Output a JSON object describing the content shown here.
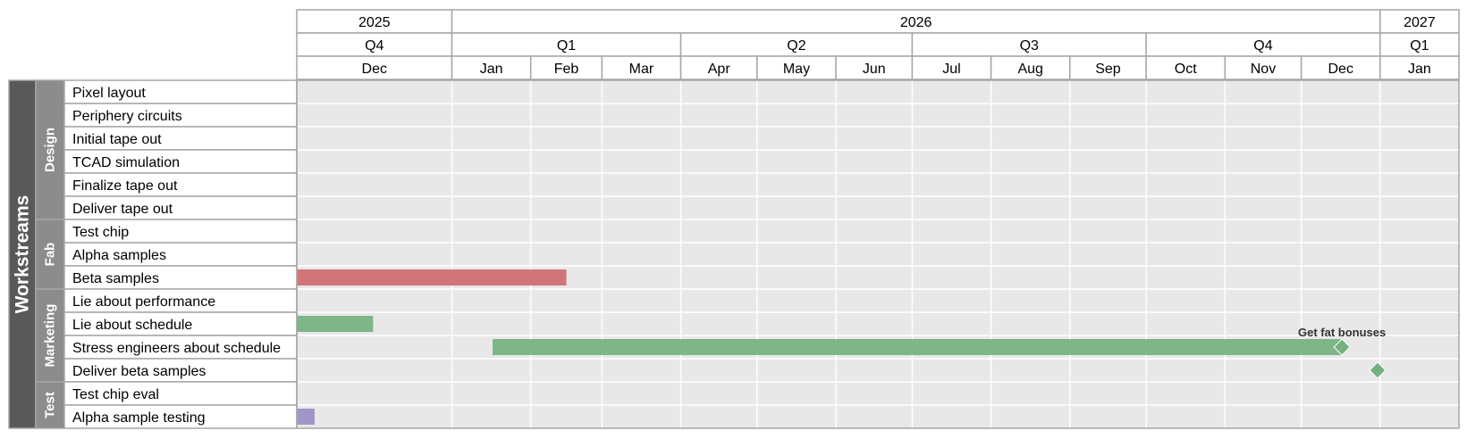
{
  "chart_data": {
    "type": "gantt",
    "title": "",
    "group_axis_label": "Workstreams",
    "x_range": [
      "2025-11-01",
      "2027-01-31"
    ],
    "timeline_header": {
      "years": [
        {
          "label": "2025",
          "start": "2025-11-01",
          "end": "2025-12-31"
        },
        {
          "label": "2026",
          "start": "2026-01-01",
          "end": "2026-12-31"
        },
        {
          "label": "2027",
          "start": "2027-01-01",
          "end": "2027-01-31"
        }
      ],
      "quarters": [
        {
          "label": "Q4",
          "start": "2025-11-01",
          "end": "2025-12-31"
        },
        {
          "label": "Q1",
          "start": "2026-01-01",
          "end": "2026-03-31"
        },
        {
          "label": "Q2",
          "start": "2026-04-01",
          "end": "2026-06-30"
        },
        {
          "label": "Q3",
          "start": "2026-07-01",
          "end": "2026-09-30"
        },
        {
          "label": "Q4",
          "start": "2026-10-01",
          "end": "2026-12-31"
        },
        {
          "label": "Q1",
          "start": "2027-01-01",
          "end": "2027-01-31"
        }
      ],
      "months": [
        {
          "label": "Dec",
          "start": "2025-11-01",
          "end": "2025-12-31"
        },
        {
          "label": "Jan",
          "start": "2026-01-01",
          "end": "2026-01-31"
        },
        {
          "label": "Feb",
          "start": "2026-02-01",
          "end": "2026-02-28"
        },
        {
          "label": "Mar",
          "start": "2026-03-01",
          "end": "2026-03-31"
        },
        {
          "label": "Apr",
          "start": "2026-04-01",
          "end": "2026-04-30"
        },
        {
          "label": "May",
          "start": "2026-05-01",
          "end": "2026-05-31"
        },
        {
          "label": "Jun",
          "start": "2026-06-01",
          "end": "2026-06-30"
        },
        {
          "label": "Jul",
          "start": "2026-07-01",
          "end": "2026-07-31"
        },
        {
          "label": "Aug",
          "start": "2026-08-01",
          "end": "2026-08-31"
        },
        {
          "label": "Sep",
          "start": "2026-09-01",
          "end": "2026-09-30"
        },
        {
          "label": "Oct",
          "start": "2026-10-01",
          "end": "2026-10-31"
        },
        {
          "label": "Nov",
          "start": "2026-11-01",
          "end": "2026-11-30"
        },
        {
          "label": "Dec",
          "start": "2026-12-01",
          "end": "2026-12-31"
        },
        {
          "label": "Jan",
          "start": "2027-01-01",
          "end": "2027-01-31"
        }
      ]
    },
    "groups": [
      {
        "name": "Design",
        "tasks": [
          "Pixel layout",
          "Periphery circuits",
          "Initial tape out",
          "TCAD simulation",
          "Finalize tape out",
          "Deliver tape out"
        ]
      },
      {
        "name": "Fab",
        "tasks": [
          "Test chip",
          "Alpha samples",
          "Beta samples"
        ]
      },
      {
        "name": "Marketing",
        "tasks": [
          "Lie about performance",
          "Lie about schedule",
          "Stress engineers about schedule",
          "Deliver beta samples"
        ]
      },
      {
        "name": "Test",
        "tasks": [
          "Test chip eval",
          "Alpha sample testing"
        ]
      }
    ],
    "bars": [
      {
        "task": "Beta samples",
        "start": "2025-11-01",
        "end": "2026-02-15",
        "color": "#cd6a70"
      },
      {
        "task": "Lie about schedule",
        "start": "2025-11-01",
        "end": "2025-12-01",
        "color": "#74b17f"
      },
      {
        "task": "Stress engineers about schedule",
        "start": "2026-01-17",
        "end": "2026-12-17",
        "color": "#74b17f"
      },
      {
        "task": "Alpha sample testing",
        "start": "2025-11-01",
        "end": "2025-11-08",
        "color": "#9a8ec3"
      }
    ],
    "milestones": [
      {
        "task": "Stress engineers about schedule",
        "date": "2026-12-17",
        "label": "Get fat bonuses",
        "color": "#74b17f"
      },
      {
        "task": "Deliver beta samples",
        "date": "2026-12-31",
        "label": "",
        "color": "#74b17f"
      }
    ],
    "grid": true,
    "colors": {
      "plot_background": "#e8e8e8",
      "grid": "#ffffff",
      "border": "#a6a6a6",
      "axis_label_bg": "#595959",
      "group_label_bg": "#8c8c8c"
    }
  }
}
